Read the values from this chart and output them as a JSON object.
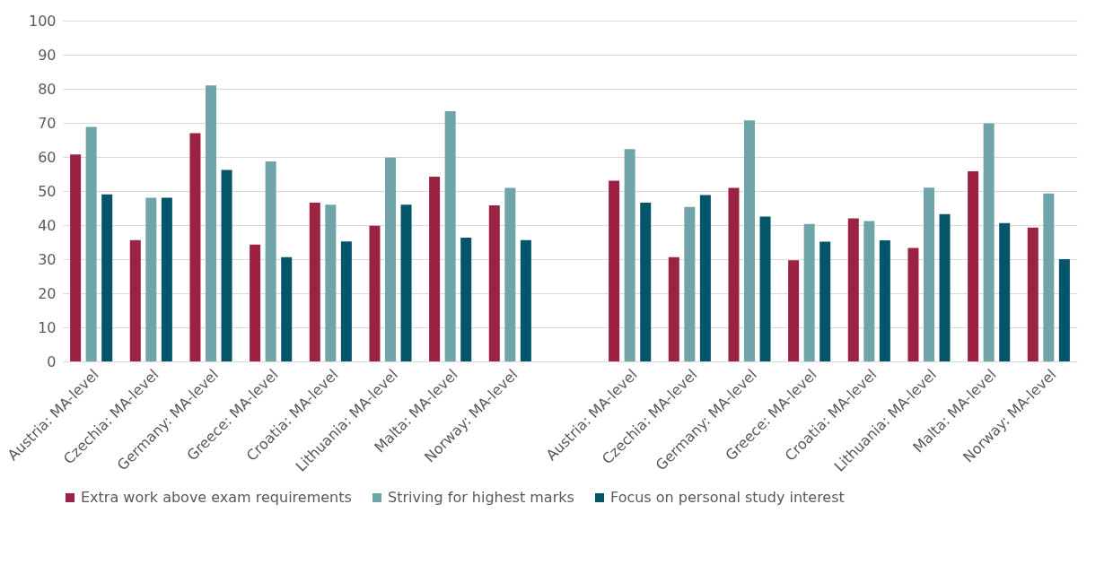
{
  "chart_data": {
    "type": "bar",
    "categories": [
      "Austria: MA-level",
      "Czechia: MA-level",
      "Germany: MA-level",
      "Greece: MA-level",
      "Croatia: MA-level",
      "Lithuania: MA-level",
      "Malta: MA-level",
      "Norway: MA-level",
      null,
      "Austria: MA-level",
      "Czechia: MA-level",
      "Germany: MA-level",
      "Greece: MA-level",
      "Croatia: MA-level",
      "Lithuania: MA-level",
      "Malta: MA-level",
      "Norway: MA-level"
    ],
    "series": [
      {
        "name": "Extra work above exam requirements",
        "color": "#9b2242",
        "values": [
          60.7,
          35.6,
          67,
          34.3,
          46.6,
          39.8,
          54.2,
          45.8,
          null,
          53,
          30.6,
          50.9,
          29.7,
          42,
          33.3,
          55.8,
          39.3
        ]
      },
      {
        "name": "Striving for highest marks",
        "color": "#6fa5a8",
        "values": [
          68.8,
          48,
          81,
          58.7,
          46,
          59.8,
          73.4,
          50.9,
          null,
          62.3,
          45.3,
          70.7,
          40.3,
          41.2,
          51,
          69.9,
          49.3
        ]
      },
      {
        "name": "Focus on personal study interest",
        "color": "#04546a",
        "values": [
          49,
          48,
          56.2,
          30.6,
          35.2,
          46,
          36.3,
          35.6,
          null,
          46.6,
          48.8,
          42.5,
          35.1,
          35.5,
          43.2,
          40.6,
          30
        ]
      }
    ],
    "ylim": [
      0,
      100
    ],
    "yticks": [
      0,
      10,
      20,
      30,
      40,
      50,
      60,
      70,
      80,
      90,
      100
    ],
    "grid": "y",
    "legend": "bottom"
  }
}
